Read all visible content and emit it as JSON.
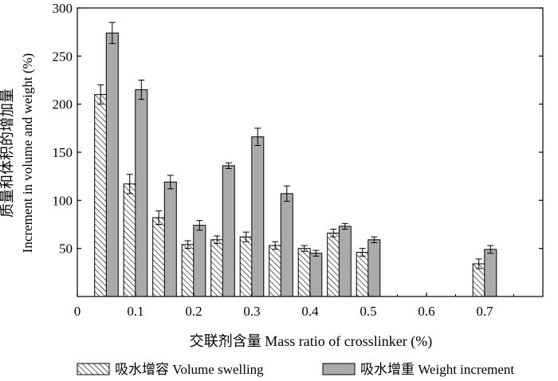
{
  "chart_data": {
    "type": "bar",
    "title": "",
    "xlabel": "交联剂含量 Mass ratio of crosslinker (%)",
    "ylabel_line1": "质量和体积的增加量",
    "ylabel_line2": "Increment in volume and weight (%)",
    "xlim": [
      0,
      0.8
    ],
    "ylim": [
      0,
      300
    ],
    "x_ticks": [
      "0",
      "0.1",
      "0.2",
      "0.3",
      "0.4",
      "0.5",
      "0.6",
      "0.7"
    ],
    "y_ticks": [
      "50",
      "100",
      "150",
      "200",
      "250",
      "300"
    ],
    "legend_position": "bottom",
    "series": [
      {
        "name": "吸水增容 Volume swelling",
        "style": "hatched",
        "color": "#ffffff",
        "x": [
          0.04,
          0.09,
          0.14,
          0.19,
          0.24,
          0.29,
          0.34,
          0.39,
          0.44,
          0.49,
          0.69
        ],
        "values": [
          210,
          117,
          82,
          54,
          59,
          62,
          53,
          50,
          66,
          46,
          34
        ],
        "errors": [
          10,
          10,
          7,
          4,
          4,
          5,
          4,
          3,
          4,
          4,
          5
        ]
      },
      {
        "name": "吸水增重 Weight increment",
        "style": "solid",
        "color": "#aaaaaa",
        "x": [
          0.06,
          0.11,
          0.16,
          0.21,
          0.26,
          0.31,
          0.36,
          0.41,
          0.46,
          0.51,
          0.71
        ],
        "values": [
          274,
          215,
          119,
          74,
          136,
          166,
          107,
          45,
          73,
          59,
          49
        ],
        "errors": [
          11,
          10,
          7,
          5,
          3,
          9,
          8,
          3,
          3,
          3,
          4
        ]
      }
    ]
  }
}
